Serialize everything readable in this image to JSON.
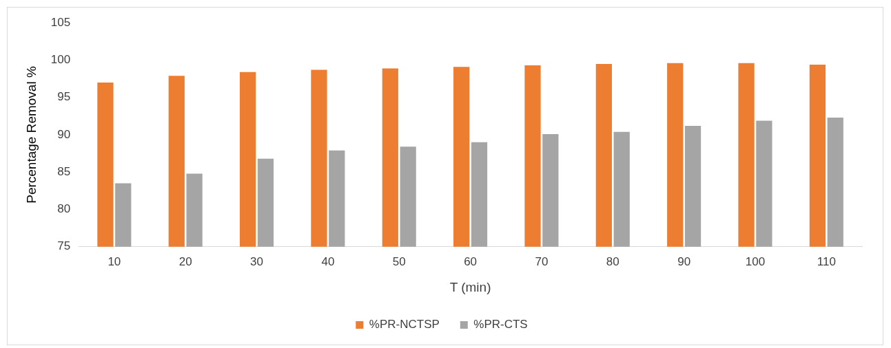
{
  "chart_data": {
    "type": "bar",
    "xlabel": "T (min)",
    "ylabel": "Percentage Removal %",
    "categories": [
      "10",
      "20",
      "30",
      "40",
      "50",
      "60",
      "70",
      "80",
      "90",
      "100",
      "110"
    ],
    "series": [
      {
        "name": "%PR-NCTSP",
        "color": "#ed7d31",
        "values": [
          97.0,
          97.9,
          98.4,
          98.7,
          98.9,
          99.1,
          99.3,
          99.5,
          99.6,
          99.6,
          99.4
        ]
      },
      {
        "name": "%PR-CTS",
        "color": "#a5a5a5",
        "values": [
          83.5,
          84.8,
          86.8,
          87.9,
          88.4,
          89.0,
          90.1,
          90.4,
          91.2,
          91.9,
          92.3
        ]
      }
    ],
    "ylim": [
      75,
      105
    ],
    "yticks": [
      75,
      80,
      85,
      90,
      95,
      100,
      105
    ],
    "grid": false,
    "legend": "bottom"
  }
}
